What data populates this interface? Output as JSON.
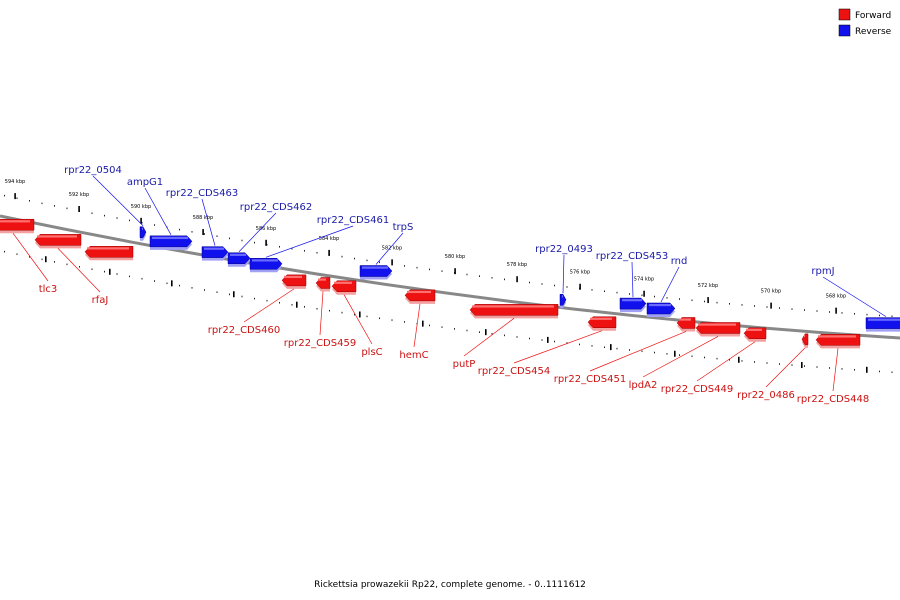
{
  "colors": {
    "forward": "#ee1111",
    "reverse": "#1111ee",
    "forward_label": "#cc1111",
    "reverse_label": "#1a1aa8",
    "backbone": "#888888"
  },
  "legend": {
    "forward": "Forward",
    "reverse": "Reverse"
  },
  "caption": "Rickettsia prowazekii Rp22, complete genome. - 0..1111612",
  "ticks": [
    "594 kbp",
    "592 kbp",
    "590 kbp",
    "588 kbp",
    "586 kbp",
    "584 kbp",
    "582 kbp",
    "580 kbp",
    "578 kbp",
    "576 kbp",
    "574 kbp",
    "572 kbp",
    "570 kbp",
    "568 kbp"
  ],
  "genes": [
    {
      "name": "tlc3",
      "strand": "forward"
    },
    {
      "name": "rfaJ",
      "strand": "forward"
    },
    {
      "name": "rpr22_0504",
      "strand": "reverse"
    },
    {
      "name": "ampG1",
      "strand": "reverse"
    },
    {
      "name": "rpr22_CDS463",
      "strand": "reverse"
    },
    {
      "name": "rpr22_CDS462",
      "strand": "reverse"
    },
    {
      "name": "rpr22_CDS461",
      "strand": "reverse"
    },
    {
      "name": "trpS",
      "strand": "reverse"
    },
    {
      "name": "rpr22_CDS460",
      "strand": "forward"
    },
    {
      "name": "rpr22_CDS459",
      "strand": "forward"
    },
    {
      "name": "plsC",
      "strand": "forward"
    },
    {
      "name": "hemC",
      "strand": "forward"
    },
    {
      "name": "putP",
      "strand": "forward"
    },
    {
      "name": "rpr22_0493",
      "strand": "reverse"
    },
    {
      "name": "rpr22_CDS454",
      "strand": "forward"
    },
    {
      "name": "rpr22_CDS453",
      "strand": "reverse"
    },
    {
      "name": "rnd",
      "strand": "reverse"
    },
    {
      "name": "rpr22_CDS451",
      "strand": "forward"
    },
    {
      "name": "lpdA2",
      "strand": "forward"
    },
    {
      "name": "rpr22_CDS449",
      "strand": "forward"
    },
    {
      "name": "rpr22_0486",
      "strand": "forward"
    },
    {
      "name": "rpr22_CDS448",
      "strand": "forward"
    },
    {
      "name": "rpmJ",
      "strand": "reverse"
    }
  ]
}
